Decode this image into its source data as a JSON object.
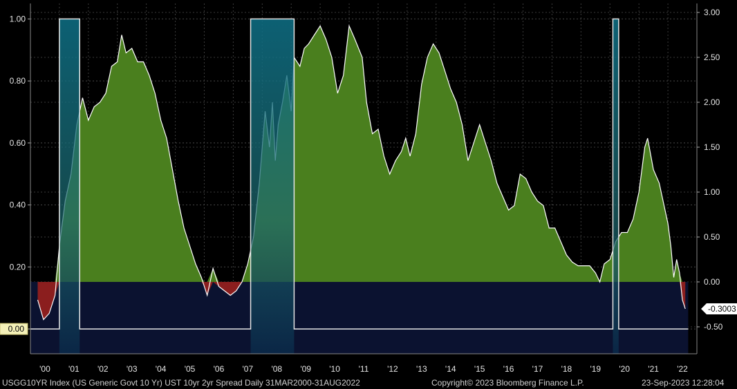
{
  "footer": {
    "left": "USGG10YR Index (US Generic Govt 10 Yr) UST 10yr 2yr Spread  Daily 31MAR2000-31AUG2022",
    "center": "Copyright© 2023 Bloomberg Finance L.P.",
    "right": "23-Sep-2023 12:28:04"
  },
  "chart_data": {
    "type": "area",
    "title": "",
    "xlabel": "",
    "ylabel": "",
    "x_ticks": [
      "'00",
      "'01",
      "'02",
      "'03",
      "'04",
      "'05",
      "'06",
      "'07",
      "'08",
      "'09",
      "'10",
      "'11",
      "'12",
      "'13",
      "'14",
      "'15",
      "'16",
      "'17",
      "'18",
      "'19",
      "'20",
      "'21",
      "'22"
    ],
    "y_left": {
      "ticks": [
        "1.00",
        "0.80",
        "0.60",
        "0.40",
        "0.20",
        "0.00"
      ],
      "range": [
        -0.08,
        1.05
      ],
      "current_label": "0.00"
    },
    "y_right": {
      "ticks": [
        "3.00",
        "2.50",
        "2.00",
        "1.50",
        "1.00",
        "0.50",
        "0.00",
        "-0.50"
      ],
      "range": [
        -0.8,
        3.1
      ],
      "current_label": "-0.3003"
    },
    "grid": true,
    "x_range": [
      2000.0,
      2023.0
    ],
    "series": [
      {
        "axis": "right",
        "positive_color": "#4a7f1e",
        "negative_color": "#8b1e1e",
        "line_color": "#ffffff",
        "points": [
          [
            2000.25,
            -0.2
          ],
          [
            2000.45,
            -0.42
          ],
          [
            2000.65,
            -0.35
          ],
          [
            2000.85,
            -0.15
          ],
          [
            2001.0,
            0.4
          ],
          [
            2001.2,
            0.9
          ],
          [
            2001.4,
            1.2
          ],
          [
            2001.6,
            1.75
          ],
          [
            2001.8,
            2.05
          ],
          [
            2002.0,
            1.8
          ],
          [
            2002.2,
            1.95
          ],
          [
            2002.4,
            2.0
          ],
          [
            2002.6,
            2.1
          ],
          [
            2002.8,
            2.4
          ],
          [
            2003.0,
            2.45
          ],
          [
            2003.15,
            2.75
          ],
          [
            2003.3,
            2.55
          ],
          [
            2003.5,
            2.6
          ],
          [
            2003.7,
            2.45
          ],
          [
            2003.9,
            2.45
          ],
          [
            2004.1,
            2.3
          ],
          [
            2004.3,
            2.1
          ],
          [
            2004.5,
            1.8
          ],
          [
            2004.7,
            1.6
          ],
          [
            2004.9,
            1.25
          ],
          [
            2005.1,
            0.9
          ],
          [
            2005.3,
            0.6
          ],
          [
            2005.5,
            0.4
          ],
          [
            2005.7,
            0.2
          ],
          [
            2005.9,
            0.05
          ],
          [
            2006.0,
            -0.05
          ],
          [
            2006.1,
            -0.15
          ],
          [
            2006.3,
            0.15
          ],
          [
            2006.5,
            -0.05
          ],
          [
            2006.7,
            -0.1
          ],
          [
            2006.9,
            -0.15
          ],
          [
            2007.1,
            -0.1
          ],
          [
            2007.3,
            0.0
          ],
          [
            2007.5,
            0.2
          ],
          [
            2007.7,
            0.5
          ],
          [
            2007.9,
            1.1
          ],
          [
            2008.0,
            1.5
          ],
          [
            2008.1,
            1.9
          ],
          [
            2008.25,
            1.5
          ],
          [
            2008.35,
            2.0
          ],
          [
            2008.45,
            1.35
          ],
          [
            2008.55,
            1.75
          ],
          [
            2008.7,
            2.0
          ],
          [
            2008.85,
            2.3
          ],
          [
            2009.0,
            1.9
          ],
          [
            2009.1,
            2.5
          ],
          [
            2009.3,
            2.4
          ],
          [
            2009.45,
            2.6
          ],
          [
            2009.6,
            2.65
          ],
          [
            2009.8,
            2.75
          ],
          [
            2010.0,
            2.85
          ],
          [
            2010.2,
            2.7
          ],
          [
            2010.4,
            2.5
          ],
          [
            2010.6,
            2.1
          ],
          [
            2010.8,
            2.3
          ],
          [
            2011.0,
            2.85
          ],
          [
            2011.2,
            2.7
          ],
          [
            2011.45,
            2.5
          ],
          [
            2011.6,
            2.0
          ],
          [
            2011.8,
            1.65
          ],
          [
            2012.0,
            1.7
          ],
          [
            2012.2,
            1.4
          ],
          [
            2012.4,
            1.2
          ],
          [
            2012.6,
            1.35
          ],
          [
            2012.8,
            1.45
          ],
          [
            2012.95,
            1.6
          ],
          [
            2013.1,
            1.4
          ],
          [
            2013.3,
            1.65
          ],
          [
            2013.5,
            2.2
          ],
          [
            2013.7,
            2.5
          ],
          [
            2013.9,
            2.65
          ],
          [
            2014.1,
            2.55
          ],
          [
            2014.3,
            2.35
          ],
          [
            2014.5,
            2.15
          ],
          [
            2014.7,
            2.0
          ],
          [
            2014.9,
            1.75
          ],
          [
            2015.1,
            1.35
          ],
          [
            2015.3,
            1.55
          ],
          [
            2015.5,
            1.75
          ],
          [
            2015.7,
            1.55
          ],
          [
            2015.9,
            1.35
          ],
          [
            2016.1,
            1.1
          ],
          [
            2016.3,
            0.95
          ],
          [
            2016.5,
            0.8
          ],
          [
            2016.7,
            0.85
          ],
          [
            2016.9,
            1.2
          ],
          [
            2017.1,
            1.15
          ],
          [
            2017.3,
            1.0
          ],
          [
            2017.5,
            0.9
          ],
          [
            2017.7,
            0.85
          ],
          [
            2017.9,
            0.6
          ],
          [
            2018.1,
            0.6
          ],
          [
            2018.3,
            0.45
          ],
          [
            2018.5,
            0.3
          ],
          [
            2018.7,
            0.22
          ],
          [
            2018.9,
            0.18
          ],
          [
            2019.1,
            0.18
          ],
          [
            2019.3,
            0.18
          ],
          [
            2019.5,
            0.1
          ],
          [
            2019.65,
            0.0
          ],
          [
            2019.8,
            0.2
          ],
          [
            2020.0,
            0.25
          ],
          [
            2020.2,
            0.45
          ],
          [
            2020.4,
            0.55
          ],
          [
            2020.6,
            0.55
          ],
          [
            2020.8,
            0.7
          ],
          [
            2021.0,
            1.0
          ],
          [
            2021.2,
            1.5
          ],
          [
            2021.3,
            1.6
          ],
          [
            2021.5,
            1.25
          ],
          [
            2021.7,
            1.1
          ],
          [
            2021.9,
            0.8
          ],
          [
            2022.0,
            0.65
          ],
          [
            2022.1,
            0.4
          ],
          [
            2022.2,
            0.05
          ],
          [
            2022.3,
            0.25
          ],
          [
            2022.4,
            0.1
          ],
          [
            2022.5,
            -0.2
          ],
          [
            2022.6,
            -0.3
          ]
        ]
      },
      {
        "name": "",
        "axis": "left",
        "fill_color": "#0a3c5c",
        "line_color": "#e6e6e6",
        "periods": [
          {
            "start": 2001.0,
            "end": 2001.7,
            "value": 1.0
          },
          {
            "start": 2007.6,
            "end": 2009.1,
            "value": 1.0
          },
          {
            "start": 2020.1,
            "end": 2020.3,
            "value": 1.0
          }
        ],
        "baseline": 0.0
      }
    ]
  }
}
